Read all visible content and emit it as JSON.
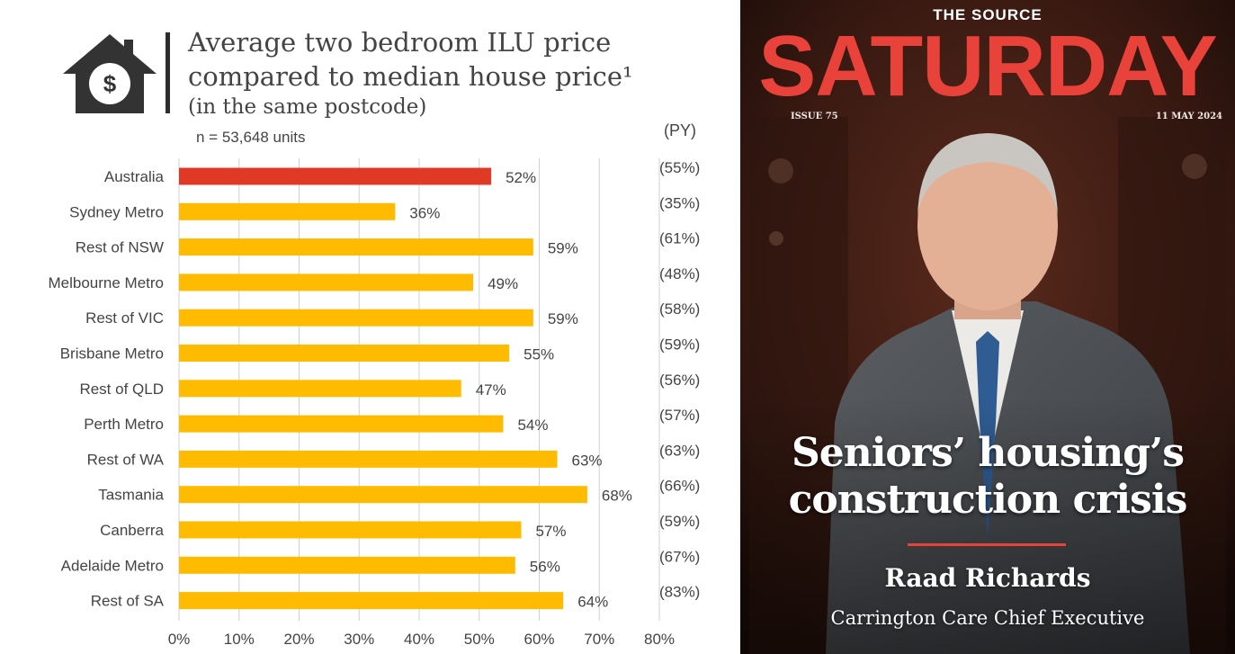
{
  "chart_data": {
    "type": "bar",
    "orientation": "horizontal",
    "title_lines": [
      "Average two bedroom ILU price",
      "compared to median house price¹",
      "(in the same postcode)"
    ],
    "subtitle": "n = 53,648 units",
    "py_header": "(PY)",
    "categories": [
      "Australia",
      "Sydney Metro",
      "Rest of NSW",
      "Melbourne Metro",
      "Rest of VIC",
      "Brisbane Metro",
      "Rest of QLD",
      "Perth Metro",
      "Rest of WA",
      "Tasmania",
      "Canberra",
      "Adelaide Metro",
      "Rest of SA"
    ],
    "values": [
      52,
      36,
      59,
      49,
      59,
      55,
      47,
      54,
      63,
      68,
      57,
      56,
      64
    ],
    "value_labels": [
      "52%",
      "36%",
      "59%",
      "49%",
      "59%",
      "55%",
      "47%",
      "54%",
      "63%",
      "68%",
      "57%",
      "56%",
      "64%"
    ],
    "py_labels": [
      "(55%)",
      "(35%)",
      "(61%)",
      "(48%)",
      "(58%)",
      "(59%)",
      "(56%)",
      "(57%)",
      "(63%)",
      "(66%)",
      "(59%)",
      "(67%)",
      "(83%)"
    ],
    "xlim": [
      0,
      80
    ],
    "xticks": [
      "0%",
      "10%",
      "20%",
      "30%",
      "40%",
      "50%",
      "60%",
      "70%",
      "80%"
    ],
    "highlight_index": 0,
    "colors": {
      "highlight": "#e03a26",
      "bar": "#ffbb00",
      "grid": "#d0d0d0",
      "text": "#444444"
    },
    "grid": true
  },
  "icon": {
    "name": "house-dollar-icon",
    "symbol": "$",
    "color": "#333333"
  },
  "magazine": {
    "kicker": "THE SOURCE",
    "title": "SATURDAY",
    "issue": "ISSUE 75",
    "date": "11 MAY 2024",
    "headline_line1": "Seniors’ housing’s",
    "headline_line2": "construction crisis",
    "person_name": "Raad Richards",
    "person_role": "Carrington Care Chief Executive",
    "colors": {
      "accent": "#e8423b",
      "background": "#2a130e",
      "suit": "#4e5155"
    }
  }
}
